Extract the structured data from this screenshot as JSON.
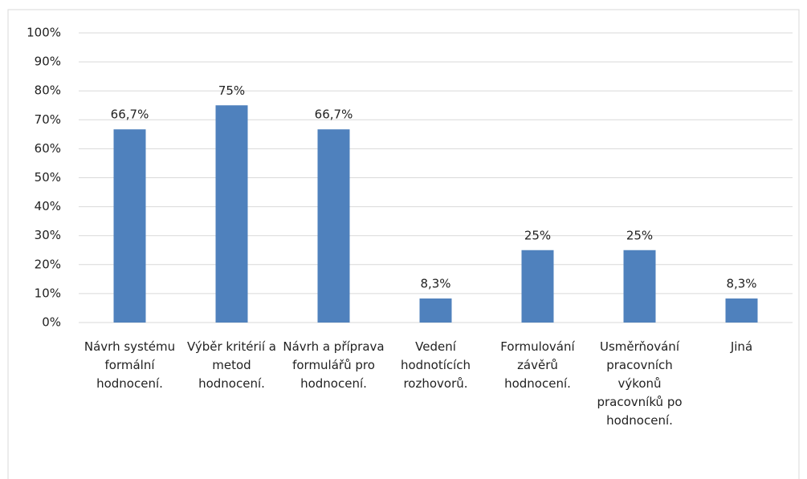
{
  "chart_data": {
    "type": "bar",
    "categories": [
      "Návrh systému formální hodnocení.",
      "Výběr kritérií a metod hodnocení.",
      "Návrh a příprava formulářů pro hodnocení.",
      "Vedení hodnotících rozhovorů.",
      "Formulování závěrů hodnocení.",
      "Usměrňování pracovních výkonů pracovníků po hodnocení.",
      "Jiná"
    ],
    "values": [
      66.7,
      75,
      66.7,
      8.3,
      25,
      25,
      8.3
    ],
    "value_labels": [
      "66,7%",
      "75%",
      "66,7%",
      "8,3%",
      "25%",
      "25%",
      "8,3%"
    ],
    "color": "#4f81bd",
    "ylim": [
      0,
      100
    ],
    "yticks": [
      {
        "value": 0,
        "label": "0%"
      },
      {
        "value": 10,
        "label": "10%"
      },
      {
        "value": 20,
        "label": "20%"
      },
      {
        "value": 30,
        "label": "30%"
      },
      {
        "value": 40,
        "label": "40%"
      },
      {
        "value": 50,
        "label": "50%"
      },
      {
        "value": 60,
        "label": "60%"
      },
      {
        "value": 70,
        "label": "70%"
      },
      {
        "value": 80,
        "label": "80%"
      },
      {
        "value": 90,
        "label": "90%"
      },
      {
        "value": 100,
        "label": "100%"
      }
    ],
    "grid": true
  }
}
